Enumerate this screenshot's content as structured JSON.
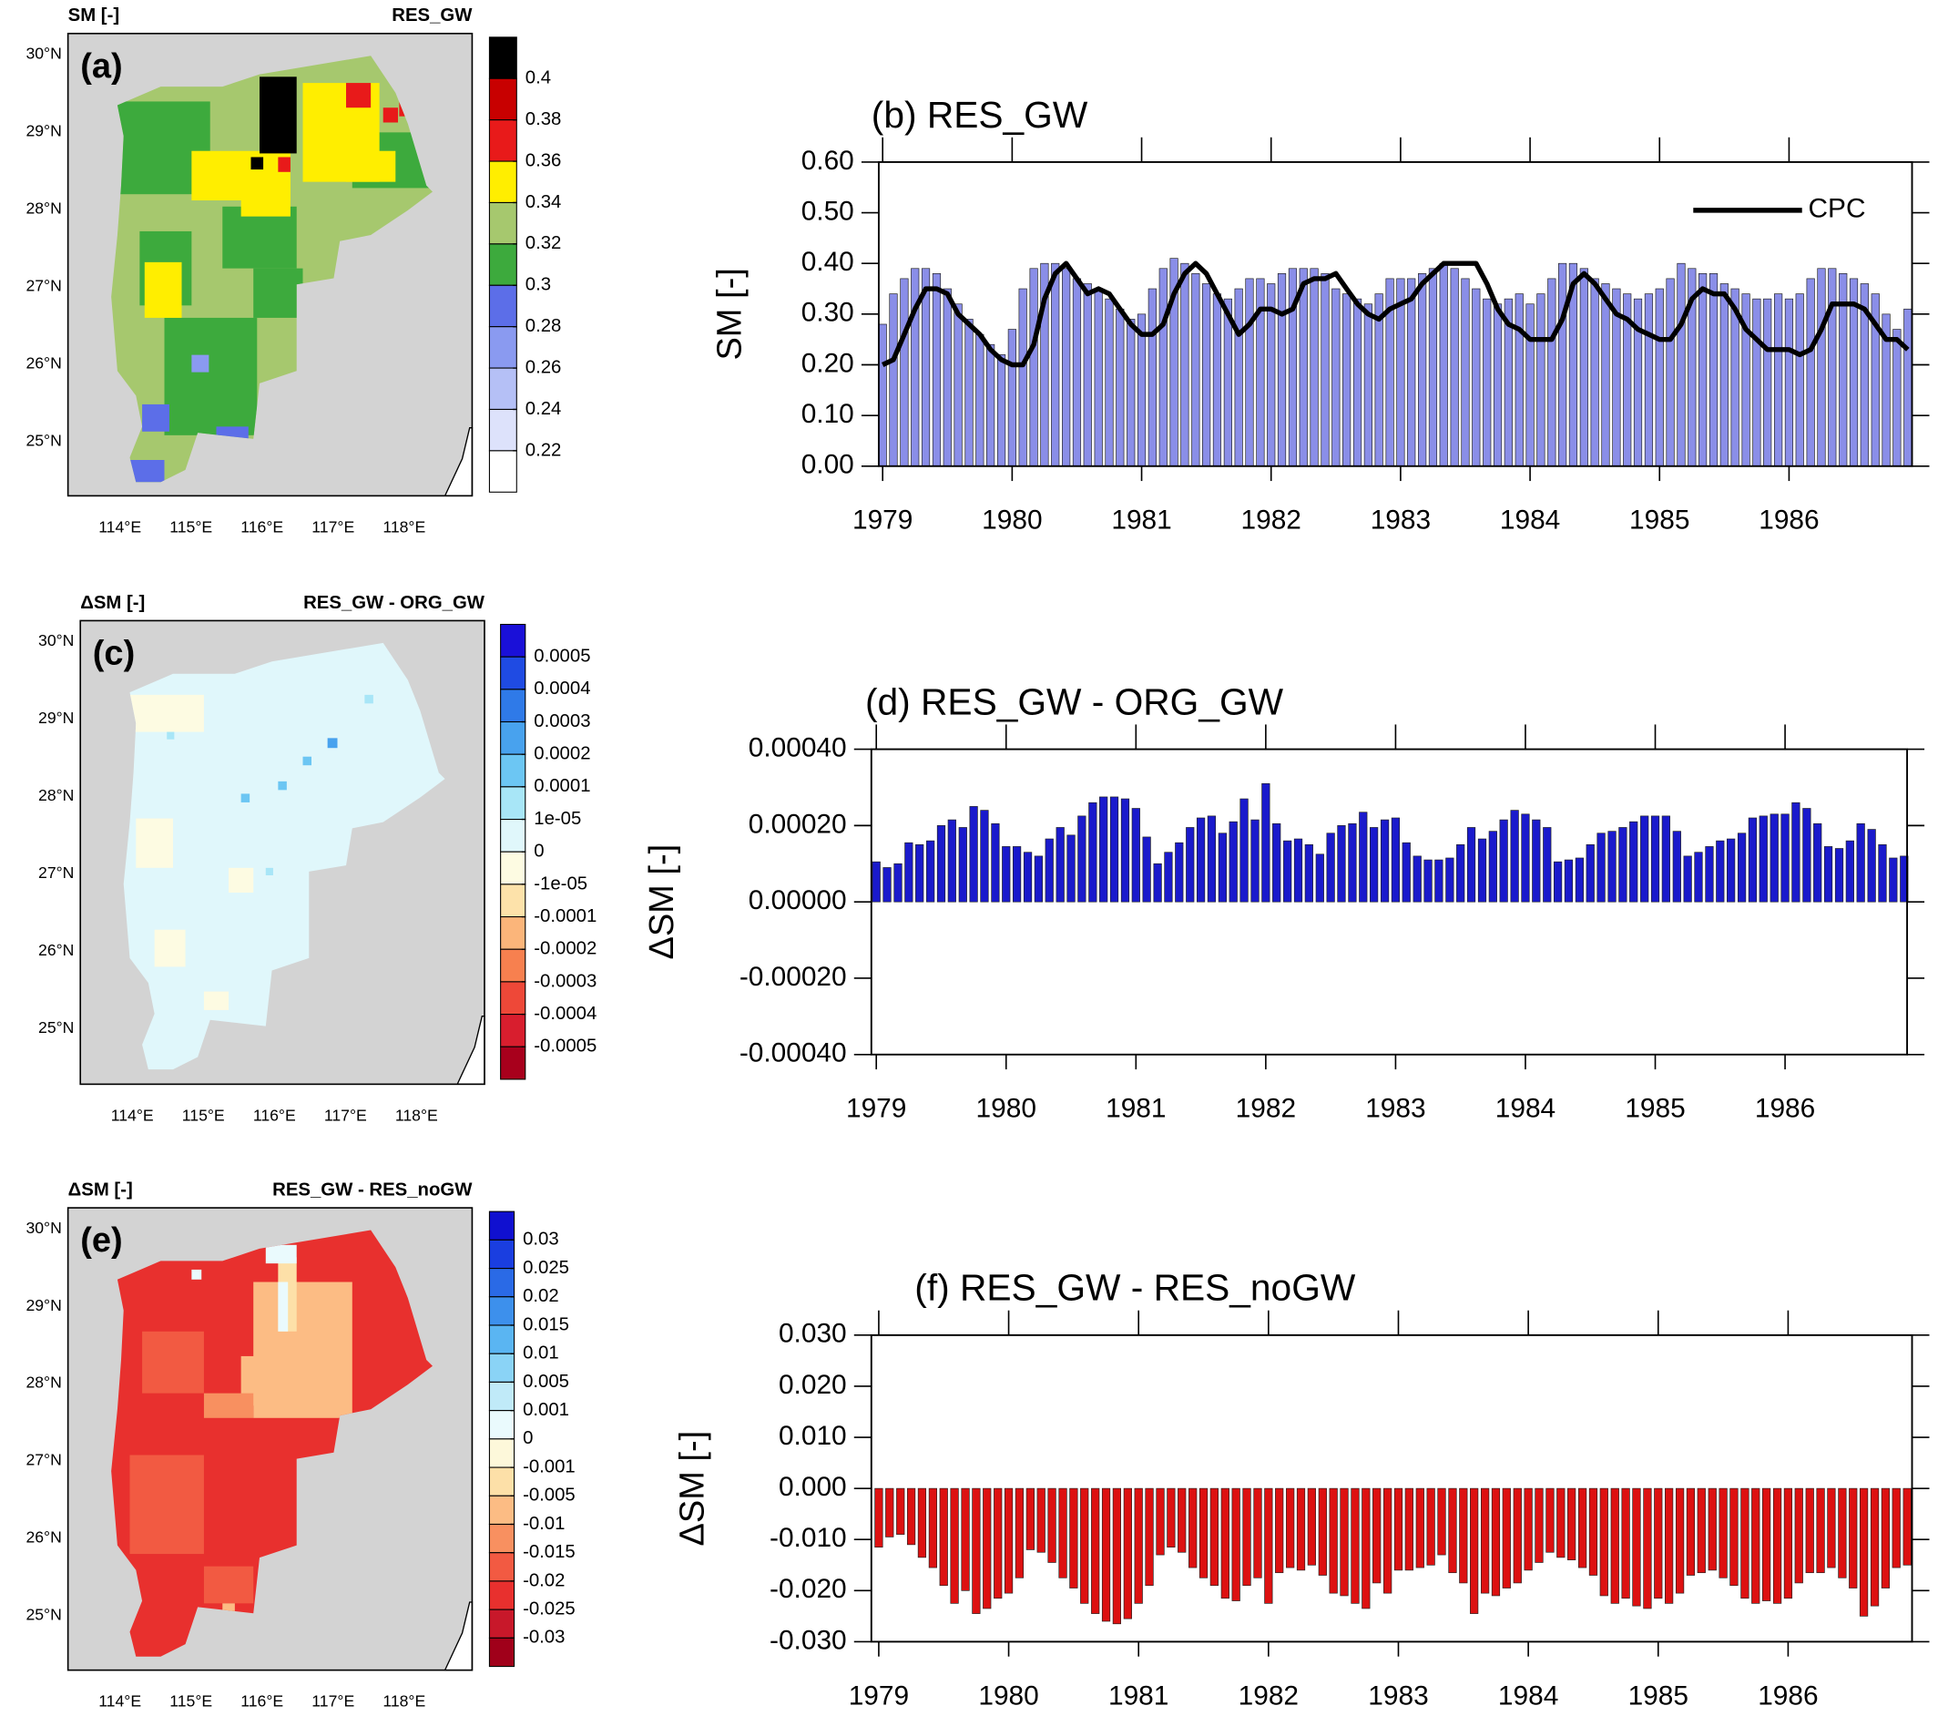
{
  "chart_data": [
    {
      "type": "map",
      "title_left": "SM [-]",
      "title_right": "RES_GW",
      "panel_label": "(a)",
      "lat_labels": [
        "30°N",
        "29°N",
        "28°N",
        "27°N",
        "26°N",
        "25°N"
      ],
      "lon_labels": [
        "114°E",
        "115°E",
        "116°E",
        "117°E",
        "118°E"
      ],
      "colorbar": {
        "labels": [
          0.4,
          0.38,
          0.36,
          0.34,
          0.32,
          0.3,
          0.28,
          0.26,
          0.24,
          0.22
        ],
        "colors": [
          "#000000",
          "#c80000",
          "#e81a1a",
          "#ffee00",
          "#a6c86e",
          "#3daa3d",
          "#5c6ee8",
          "#8a9af0",
          "#b5c0f6",
          "#dde2fb",
          "#ffffff"
        ]
      }
    },
    {
      "type": "bar",
      "title": "(b) RES_GW",
      "ylabel": "SM [-]",
      "xlim": [
        1978.97,
        1986.95
      ],
      "xticks": [
        1979,
        1980,
        1981,
        1982,
        1983,
        1984,
        1985,
        1986
      ],
      "ylim": [
        0,
        0.6
      ],
      "yticks": [
        {
          "value": 0,
          "label": "0.00"
        },
        {
          "value": 0.1,
          "label": "0.10"
        },
        {
          "value": 0.2,
          "label": "0.20"
        },
        {
          "value": 0.3,
          "label": "0.30"
        },
        {
          "value": 0.4,
          "label": "0.40"
        },
        {
          "value": 0.5,
          "label": "0.50"
        },
        {
          "value": 0.6,
          "label": "0.60"
        }
      ],
      "legend": "upper right",
      "x": [
        1979,
        1979.083,
        1979.167,
        1979.25,
        1979.333,
        1979.417,
        1979.5,
        1979.583,
        1979.667,
        1979.75,
        1979.833,
        1979.917,
        1980,
        1980.083,
        1980.167,
        1980.25,
        1980.333,
        1980.417,
        1980.5,
        1980.583,
        1980.667,
        1980.75,
        1980.833,
        1980.917,
        1981,
        1981.083,
        1981.167,
        1981.25,
        1981.333,
        1981.417,
        1981.5,
        1981.583,
        1981.667,
        1981.75,
        1981.833,
        1981.917,
        1982,
        1982.083,
        1982.167,
        1982.25,
        1982.333,
        1982.417,
        1982.5,
        1982.583,
        1982.667,
        1982.75,
        1982.833,
        1982.917,
        1983,
        1983.083,
        1983.167,
        1983.25,
        1983.333,
        1983.417,
        1983.5,
        1983.583,
        1983.667,
        1983.75,
        1983.833,
        1983.917,
        1984,
        1984.083,
        1984.167,
        1984.25,
        1984.333,
        1984.417,
        1984.5,
        1984.583,
        1984.667,
        1984.75,
        1984.833,
        1984.917,
        1985,
        1985.083,
        1985.167,
        1985.25,
        1985.333,
        1985.417,
        1985.5,
        1985.583,
        1985.667,
        1985.75,
        1985.833,
        1985.917,
        1986,
        1986.083,
        1986.167,
        1986.25,
        1986.333,
        1986.417,
        1986.5,
        1986.583,
        1986.667,
        1986.75,
        1986.833,
        1986.917
      ],
      "series": [
        {
          "color": "#8a8ee8",
          "values": [
            0.28,
            0.34,
            0.37,
            0.39,
            0.39,
            0.38,
            0.35,
            0.32,
            0.29,
            0.26,
            0.24,
            0.22,
            0.27,
            0.35,
            0.39,
            0.4,
            0.4,
            0.39,
            0.37,
            0.36,
            0.35,
            0.33,
            0.31,
            0.29,
            0.3,
            0.35,
            0.39,
            0.41,
            0.4,
            0.38,
            0.36,
            0.34,
            0.33,
            0.35,
            0.37,
            0.37,
            0.36,
            0.38,
            0.39,
            0.39,
            0.39,
            0.38,
            0.35,
            0.34,
            0.33,
            0.32,
            0.34,
            0.37,
            0.37,
            0.37,
            0.38,
            0.39,
            0.4,
            0.39,
            0.37,
            0.35,
            0.33,
            0.32,
            0.33,
            0.34,
            0.32,
            0.34,
            0.37,
            0.4,
            0.4,
            0.39,
            0.37,
            0.36,
            0.35,
            0.34,
            0.33,
            0.34,
            0.35,
            0.37,
            0.4,
            0.39,
            0.38,
            0.38,
            0.36,
            0.35,
            0.34,
            0.33,
            0.33,
            0.34,
            0.33,
            0.34,
            0.37,
            0.39,
            0.39,
            0.38,
            0.37,
            0.36,
            0.34,
            0.3,
            0.27,
            0.31
          ]
        },
        {
          "name": "CPC",
          "type": "line",
          "color": "#000000",
          "values": [
            0.2,
            0.21,
            0.26,
            0.31,
            0.35,
            0.35,
            0.34,
            0.3,
            0.28,
            0.26,
            0.23,
            0.21,
            0.2,
            0.2,
            0.24,
            0.33,
            0.38,
            0.4,
            0.37,
            0.34,
            0.35,
            0.34,
            0.31,
            0.28,
            0.26,
            0.26,
            0.28,
            0.34,
            0.38,
            0.4,
            0.38,
            0.34,
            0.3,
            0.26,
            0.28,
            0.31,
            0.31,
            0.3,
            0.31,
            0.36,
            0.37,
            0.37,
            0.38,
            0.35,
            0.32,
            0.3,
            0.29,
            0.31,
            0.32,
            0.33,
            0.36,
            0.38,
            0.4,
            0.4,
            0.4,
            0.4,
            0.36,
            0.31,
            0.28,
            0.27,
            0.25,
            0.25,
            0.25,
            0.29,
            0.36,
            0.38,
            0.36,
            0.33,
            0.3,
            0.29,
            0.27,
            0.26,
            0.25,
            0.25,
            0.28,
            0.33,
            0.35,
            0.34,
            0.34,
            0.31,
            0.27,
            0.25,
            0.23,
            0.23,
            0.23,
            0.22,
            0.23,
            0.27,
            0.32,
            0.32,
            0.32,
            0.31,
            0.28,
            0.25,
            0.25,
            0.23
          ]
        }
      ]
    },
    {
      "type": "map",
      "title_left": "ΔSM [-]",
      "title_right": "RES_GW - ORG_GW",
      "panel_label": "(c)",
      "lat_labels": [
        "30°N",
        "29°N",
        "28°N",
        "27°N",
        "26°N",
        "25°N"
      ],
      "lon_labels": [
        "114°E",
        "115°E",
        "116°E",
        "117°E",
        "118°E"
      ],
      "colorbar": {
        "labels": [
          0.0005,
          0.0004,
          0.0003,
          0.0002,
          0.0001,
          {
            "value": 1e-05,
            "label": "1e-05"
          },
          0,
          {
            "value": -1e-05,
            "label": "-1e-05"
          },
          -0.0001,
          -0.0002,
          -0.0003,
          -0.0004,
          -0.0005
        ],
        "colors": [
          "#1a10d8",
          "#1f4be3",
          "#2f7ae8",
          "#48a2ee",
          "#6cc6f3",
          "#a8e6f7",
          "#e0f7fb",
          "#fdfbe2",
          "#fde2aa",
          "#fbb57a",
          "#f7804f",
          "#ee4838",
          "#d81e2e",
          "#a8001c"
        ]
      }
    },
    {
      "type": "bar",
      "title": "(d) RES_GW - ORG_GW",
      "ylabel": "ΔSM [-]",
      "color": "#1a1acc",
      "xlim": [
        1978.962,
        1986.94
      ],
      "xticks": [
        1979,
        1980,
        1981,
        1982,
        1983,
        1984,
        1985,
        1986
      ],
      "ylim": [
        -0.0004,
        0.0004
      ],
      "yticks": [
        {
          "value": -0.0004,
          "label": "-0.00040"
        },
        {
          "value": -0.0002,
          "label": "-0.00020"
        },
        {
          "value": 0,
          "label": "0.00000"
        },
        {
          "value": 0.0002,
          "label": "0.00020"
        },
        {
          "value": 0.0004,
          "label": "0.00040"
        }
      ],
      "x": [
        1979,
        1979.083,
        1979.167,
        1979.25,
        1979.333,
        1979.417,
        1979.5,
        1979.583,
        1979.667,
        1979.75,
        1979.833,
        1979.917,
        1980,
        1980.083,
        1980.167,
        1980.25,
        1980.333,
        1980.417,
        1980.5,
        1980.583,
        1980.667,
        1980.75,
        1980.833,
        1980.917,
        1981,
        1981.083,
        1981.167,
        1981.25,
        1981.333,
        1981.417,
        1981.5,
        1981.583,
        1981.667,
        1981.75,
        1981.833,
        1981.917,
        1982,
        1982.083,
        1982.167,
        1982.25,
        1982.333,
        1982.417,
        1982.5,
        1982.583,
        1982.667,
        1982.75,
        1982.833,
        1982.917,
        1983,
        1983.083,
        1983.167,
        1983.25,
        1983.333,
        1983.417,
        1983.5,
        1983.583,
        1983.667,
        1983.75,
        1983.833,
        1983.917,
        1984,
        1984.083,
        1984.167,
        1984.25,
        1984.333,
        1984.417,
        1984.5,
        1984.583,
        1984.667,
        1984.75,
        1984.833,
        1984.917,
        1985,
        1985.083,
        1985.167,
        1985.25,
        1985.333,
        1985.417,
        1985.5,
        1985.583,
        1985.667,
        1985.75,
        1985.833,
        1985.917,
        1986,
        1986.083,
        1986.167,
        1986.25,
        1986.333,
        1986.417,
        1986.5,
        1986.583,
        1986.667,
        1986.75,
        1986.833,
        1986.917
      ],
      "values": [
        0.000105,
        9e-05,
        0.0001,
        0.000155,
        0.00015,
        0.00016,
        0.0002,
        0.000215,
        0.000195,
        0.00025,
        0.00024,
        0.000205,
        0.000145,
        0.000145,
        0.00013,
        0.00012,
        0.000165,
        0.000195,
        0.000175,
        0.000225,
        0.00026,
        0.000275,
        0.000275,
        0.00027,
        0.000245,
        0.00017,
        0.0001,
        0.00013,
        0.000155,
        0.000195,
        0.00022,
        0.000225,
        0.00018,
        0.00021,
        0.00027,
        0.000215,
        0.00031,
        0.000205,
        0.00016,
        0.000165,
        0.00015,
        0.000125,
        0.00018,
        0.0002,
        0.000205,
        0.000235,
        0.000195,
        0.000215,
        0.00022,
        0.000155,
        0.00012,
        0.00011,
        0.00011,
        0.000115,
        0.00015,
        0.000195,
        0.000165,
        0.000185,
        0.000215,
        0.00024,
        0.00023,
        0.000215,
        0.000195,
        0.000105,
        0.00011,
        0.000115,
        0.00015,
        0.00018,
        0.000185,
        0.000195,
        0.00021,
        0.000225,
        0.000225,
        0.000225,
        0.000185,
        0.00012,
        0.00013,
        0.000145,
        0.00016,
        0.000165,
        0.00018,
        0.00022,
        0.000225,
        0.00023,
        0.00023,
        0.00026,
        0.000245,
        0.000205,
        0.000145,
        0.00014,
        0.00016,
        0.000205,
        0.00019,
        0.00015,
        0.000115,
        0.00012
      ]
    },
    {
      "type": "map",
      "title_left": "ΔSM [-]",
      "title_right": "RES_GW - RES_noGW",
      "panel_label": "(e)",
      "lat_labels": [
        "30°N",
        "29°N",
        "28°N",
        "27°N",
        "26°N",
        "25°N"
      ],
      "lon_labels": [
        "114°E",
        "115°E",
        "116°E",
        "117°E",
        "118°E"
      ],
      "colorbar": {
        "labels": [
          0.03,
          0.025,
          0.02,
          0.015,
          0.01,
          0.005,
          0.001,
          0,
          -0.001,
          -0.005,
          -0.01,
          -0.015,
          -0.02,
          -0.025,
          -0.03
        ],
        "colors": [
          "#1010d0",
          "#1a3ee0",
          "#2a6ae6",
          "#3d90ec",
          "#5ab5f2",
          "#8ad3f6",
          "#c0eaf8",
          "#eafafd",
          "#fdf8da",
          "#fde0a8",
          "#fcbc84",
          "#f89060",
          "#f25a42",
          "#e8302e",
          "#c8182a",
          "#a0001a"
        ]
      }
    },
    {
      "type": "bar",
      "title": "(f) RES_GW - RES_noGW",
      "ylabel": "ΔSM [-]",
      "color": "#dd1111",
      "xlim": [
        1978.943,
        1986.954
      ],
      "xticks": [
        1979,
        1980,
        1981,
        1982,
        1983,
        1984,
        1985,
        1986
      ],
      "ylim": [
        -0.03,
        0.03
      ],
      "yticks": [
        {
          "value": -0.03,
          "label": "-0.030"
        },
        {
          "value": -0.02,
          "label": "-0.020"
        },
        {
          "value": -0.01,
          "label": "-0.010"
        },
        {
          "value": 0,
          "label": "0.000"
        },
        {
          "value": 0.01,
          "label": "0.010"
        },
        {
          "value": 0.02,
          "label": "0.020"
        },
        {
          "value": 0.03,
          "label": "0.030"
        }
      ],
      "x": [
        1979,
        1979.083,
        1979.167,
        1979.25,
        1979.333,
        1979.417,
        1979.5,
        1979.583,
        1979.667,
        1979.75,
        1979.833,
        1979.917,
        1980,
        1980.083,
        1980.167,
        1980.25,
        1980.333,
        1980.417,
        1980.5,
        1980.583,
        1980.667,
        1980.75,
        1980.833,
        1980.917,
        1981,
        1981.083,
        1981.167,
        1981.25,
        1981.333,
        1981.417,
        1981.5,
        1981.583,
        1981.667,
        1981.75,
        1981.833,
        1981.917,
        1982,
        1982.083,
        1982.167,
        1982.25,
        1982.333,
        1982.417,
        1982.5,
        1982.583,
        1982.667,
        1982.75,
        1982.833,
        1982.917,
        1983,
        1983.083,
        1983.167,
        1983.25,
        1983.333,
        1983.417,
        1983.5,
        1983.583,
        1983.667,
        1983.75,
        1983.833,
        1983.917,
        1984,
        1984.083,
        1984.167,
        1984.25,
        1984.333,
        1984.417,
        1984.5,
        1984.583,
        1984.667,
        1984.75,
        1984.833,
        1984.917,
        1985,
        1985.083,
        1985.167,
        1985.25,
        1985.333,
        1985.417,
        1985.5,
        1985.583,
        1985.667,
        1985.75,
        1985.833,
        1985.917,
        1986,
        1986.083,
        1986.167,
        1986.25,
        1986.333,
        1986.417,
        1986.5,
        1986.583,
        1986.667,
        1986.75,
        1986.833,
        1986.917
      ],
      "values": [
        -0.0115,
        -0.0095,
        -0.009,
        -0.011,
        -0.0135,
        -0.0155,
        -0.019,
        -0.0225,
        -0.02,
        -0.0245,
        -0.0235,
        -0.0215,
        -0.0205,
        -0.0175,
        -0.012,
        -0.0125,
        -0.0145,
        -0.0175,
        -0.0195,
        -0.0225,
        -0.0245,
        -0.026,
        -0.0265,
        -0.0255,
        -0.0225,
        -0.019,
        -0.013,
        -0.0115,
        -0.0125,
        -0.0155,
        -0.0175,
        -0.019,
        -0.0215,
        -0.022,
        -0.019,
        -0.0175,
        -0.0225,
        -0.0165,
        -0.0155,
        -0.016,
        -0.015,
        -0.017,
        -0.0205,
        -0.021,
        -0.0225,
        -0.0235,
        -0.0185,
        -0.0205,
        -0.016,
        -0.016,
        -0.0155,
        -0.015,
        -0.013,
        -0.0165,
        -0.0185,
        -0.0245,
        -0.0205,
        -0.021,
        -0.0195,
        -0.0185,
        -0.016,
        -0.0145,
        -0.0125,
        -0.0135,
        -0.014,
        -0.0155,
        -0.017,
        -0.021,
        -0.0225,
        -0.0215,
        -0.023,
        -0.0235,
        -0.0215,
        -0.0225,
        -0.0205,
        -0.017,
        -0.0165,
        -0.016,
        -0.0175,
        -0.019,
        -0.0215,
        -0.0225,
        -0.022,
        -0.0225,
        -0.0215,
        -0.0185,
        -0.0165,
        -0.0165,
        -0.0155,
        -0.0175,
        -0.0195,
        -0.025,
        -0.023,
        -0.0195,
        -0.0155,
        -0.015
      ]
    }
  ]
}
